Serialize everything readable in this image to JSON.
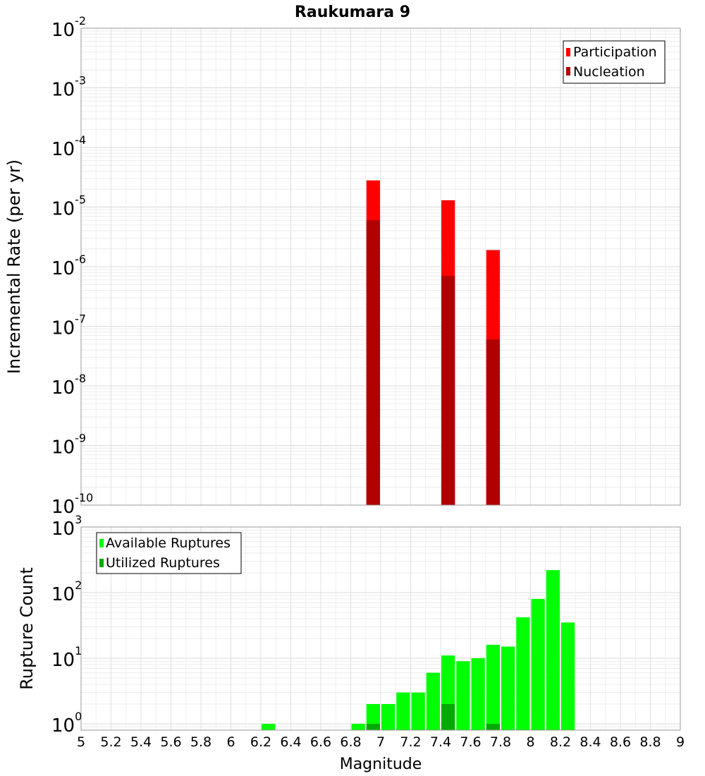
{
  "chart_data": [
    {
      "type": "bar",
      "title": "Raukumara 9",
      "ylabel": "Incremental Rate (per yr)",
      "xlabel": "",
      "yscale": "log",
      "ylim": [
        1e-10,
        0.01
      ],
      "xlim": [
        5,
        9
      ],
      "bin_width": 0.1,
      "grid": true,
      "legend_position": "top-right",
      "yticks": [
        {
          "base": "10",
          "exp": "-2",
          "value": 0.01
        },
        {
          "base": "10",
          "exp": "-3",
          "value": 0.001
        },
        {
          "base": "10",
          "exp": "-4",
          "value": 0.0001
        },
        {
          "base": "10",
          "exp": "-5",
          "value": 1e-05
        },
        {
          "base": "10",
          "exp": "-6",
          "value": 1e-06
        },
        {
          "base": "10",
          "exp": "-7",
          "value": 1e-07
        },
        {
          "base": "10",
          "exp": "-8",
          "value": 1e-08
        },
        {
          "base": "10",
          "exp": "-9",
          "value": 1e-09
        },
        {
          "base": "10",
          "exp": "-10",
          "value": 1e-10
        }
      ],
      "series": [
        {
          "name": "Participation",
          "color": "#ff0000",
          "points": [
            {
              "x": 6.95,
              "y": 2.8e-05
            },
            {
              "x": 7.45,
              "y": 1.3e-05
            },
            {
              "x": 7.75,
              "y": 1.9e-06
            }
          ]
        },
        {
          "name": "Nucleation",
          "color": "#b00000",
          "points": [
            {
              "x": 6.95,
              "y": 6e-06
            },
            {
              "x": 7.45,
              "y": 7e-07
            },
            {
              "x": 7.75,
              "y": 6e-08
            }
          ]
        }
      ]
    },
    {
      "type": "bar",
      "title": "",
      "ylabel": "Rupture Count",
      "xlabel": "Magnitude",
      "yscale": "log",
      "ylim": [
        0.8,
        1000
      ],
      "xlim": [
        5,
        9
      ],
      "bin_width": 0.1,
      "grid": true,
      "legend_position": "top-left",
      "xtick_labels": [
        "5",
        "5.2",
        "5.4",
        "5.6",
        "5.8",
        "6",
        "6.2",
        "6.4",
        "6.6",
        "6.8",
        "7",
        "7.2",
        "7.4",
        "7.6",
        "7.8",
        "8",
        "8.2",
        "8.4",
        "8.6",
        "8.8",
        "9"
      ],
      "yticks": [
        {
          "base": "10",
          "exp": "3",
          "value": 1000
        },
        {
          "base": "10",
          "exp": "2",
          "value": 100
        },
        {
          "base": "10",
          "exp": "1",
          "value": 10
        },
        {
          "base": "10",
          "exp": "0",
          "value": 1
        }
      ],
      "series": [
        {
          "name": "Available Ruptures",
          "color": "#00ff00",
          "points": [
            {
              "x": 6.25,
              "y": 1
            },
            {
              "x": 6.85,
              "y": 1
            },
            {
              "x": 6.95,
              "y": 2
            },
            {
              "x": 7.05,
              "y": 2
            },
            {
              "x": 7.15,
              "y": 3
            },
            {
              "x": 7.25,
              "y": 3
            },
            {
              "x": 7.35,
              "y": 6
            },
            {
              "x": 7.45,
              "y": 11
            },
            {
              "x": 7.55,
              "y": 9
            },
            {
              "x": 7.65,
              "y": 10
            },
            {
              "x": 7.75,
              "y": 16
            },
            {
              "x": 7.85,
              "y": 15
            },
            {
              "x": 7.95,
              "y": 42
            },
            {
              "x": 8.05,
              "y": 80
            },
            {
              "x": 8.15,
              "y": 220
            },
            {
              "x": 8.25,
              "y": 35
            }
          ]
        },
        {
          "name": "Utilized Ruptures",
          "color": "#00aa00",
          "points": [
            {
              "x": 6.95,
              "y": 1
            },
            {
              "x": 7.45,
              "y": 2
            },
            {
              "x": 7.75,
              "y": 1
            }
          ]
        }
      ]
    }
  ]
}
